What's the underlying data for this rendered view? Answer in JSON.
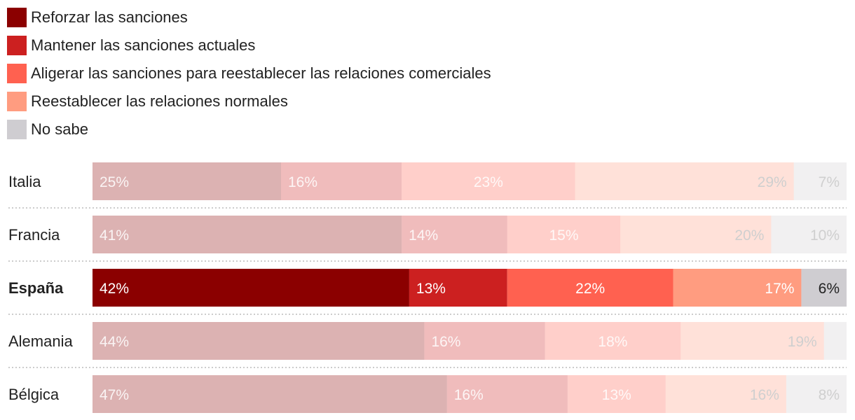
{
  "colors": {
    "reforzar": "#8b0000",
    "mantener": "#cc2020",
    "aligerar": "#ff6150",
    "restablecer": "#ff9c80",
    "nosabe": "#cfcdd1",
    "label_dark": "#ffffff",
    "label_light": "#222222"
  },
  "legend": [
    {
      "key": "reforzar",
      "label": "Reforzar las sanciones"
    },
    {
      "key": "mantener",
      "label": "Mantener las sanciones actuales"
    },
    {
      "key": "aligerar",
      "label": "Aligerar las sanciones para reestablecer las relaciones comerciales"
    },
    {
      "key": "restablecer",
      "label": "Reestablecer las relaciones normales"
    },
    {
      "key": "nosabe",
      "label": "No sabe"
    }
  ],
  "chart_data": {
    "type": "bar",
    "orientation": "horizontal",
    "stacked": true,
    "unit": "%",
    "highlight": "España",
    "categories": [
      "Italia",
      "Francia",
      "España",
      "Alemania",
      "Bélgica"
    ],
    "series": [
      {
        "name": "Reforzar las sanciones",
        "key": "reforzar",
        "values": [
          25,
          41,
          42,
          44,
          47
        ]
      },
      {
        "name": "Mantener las sanciones actuales",
        "key": "mantener",
        "values": [
          16,
          14,
          13,
          16,
          16
        ]
      },
      {
        "name": "Aligerar las sanciones para reestablecer las relaciones comerciales",
        "key": "aligerar",
        "values": [
          23,
          15,
          22,
          18,
          13
        ]
      },
      {
        "name": "Reestablecer las relaciones normales",
        "key": "restablecer",
        "values": [
          29,
          20,
          17,
          19,
          16
        ]
      },
      {
        "name": "No sabe",
        "key": "nosabe",
        "values": [
          7,
          10,
          6,
          3,
          8
        ]
      }
    ],
    "labels": [
      [
        "25%",
        "16%",
        "23%",
        "29%",
        "7%"
      ],
      [
        "41%",
        "14%",
        "15%",
        "20%",
        "10%"
      ],
      [
        "42%",
        "13%",
        "22%",
        "17%",
        "6%"
      ],
      [
        "44%",
        "16%",
        "18%",
        "19%",
        ""
      ],
      [
        "47%",
        "16%",
        "13%",
        "16%",
        "8%"
      ]
    ],
    "label_align": [
      "left",
      "left",
      "center",
      "right",
      "right"
    ]
  }
}
